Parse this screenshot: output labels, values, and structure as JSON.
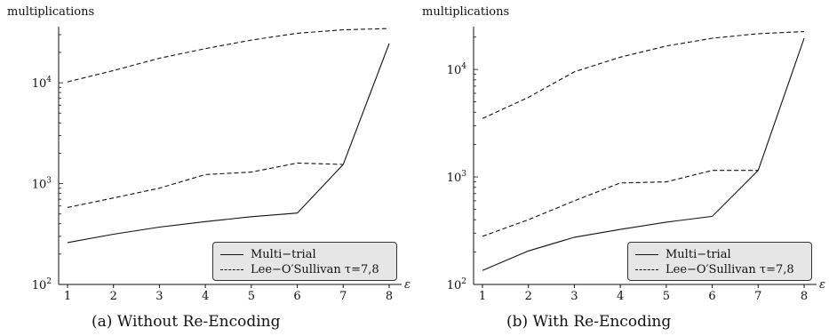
{
  "chart_data": [
    {
      "type": "line",
      "caption": "(a) Without Re-Encoding",
      "ylabel": "multiplications",
      "xlabel": "ε",
      "yscale": "log",
      "ylim": [
        100,
        36000
      ],
      "xlim": [
        0.8,
        8.2
      ],
      "x_ticks": [
        "1",
        "2",
        "3",
        "4",
        "5",
        "6",
        "7",
        "8"
      ],
      "y_ticks": [
        {
          "label": "10",
          "exp": "2",
          "value": 100
        },
        {
          "label": "10",
          "exp": "3",
          "value": 1000
        },
        {
          "label": "10",
          "exp": "4",
          "value": 10000
        }
      ],
      "legend": [
        {
          "label": "Multi−trial",
          "style": "solid"
        },
        {
          "label": "Lee−O′Sullivan τ=7,8",
          "style": "dashed"
        }
      ],
      "series": [
        {
          "name": "Multi−trial",
          "style": "solid",
          "x": [
            1,
            2,
            3,
            4,
            5,
            6,
            7,
            8
          ],
          "y": [
            260,
            315,
            370,
            420,
            470,
            510,
            1550,
            24500
          ]
        },
        {
          "name": "Lee−O′Sullivan τ=7,8",
          "style": "dashed",
          "x": [
            1,
            2,
            3,
            4,
            5,
            6,
            7
          ],
          "y": [
            580,
            720,
            900,
            1230,
            1300,
            1600,
            1550
          ]
        },
        {
          "name": "Lee−O′Sullivan τ=7,8",
          "style": "dashed",
          "x": [
            1,
            2,
            3,
            4,
            5,
            6,
            7,
            8
          ],
          "y": [
            10200,
            13200,
            17500,
            21800,
            26500,
            31000,
            33500,
            34500
          ]
        }
      ]
    },
    {
      "type": "line",
      "caption": "(b) With Re-Encoding",
      "ylabel": "multiplications",
      "xlabel": "ε",
      "yscale": "log",
      "ylim": [
        100,
        25000
      ],
      "xlim": [
        0.8,
        8.2
      ],
      "x_ticks": [
        "1",
        "2",
        "3",
        "4",
        "5",
        "6",
        "7",
        "8"
      ],
      "y_ticks": [
        {
          "label": "10",
          "exp": "2",
          "value": 100
        },
        {
          "label": "10",
          "exp": "3",
          "value": 1000
        },
        {
          "label": "10",
          "exp": "4",
          "value": 10000
        }
      ],
      "legend": [
        {
          "label": "Multi−trial",
          "style": "solid"
        },
        {
          "label": "Lee−O′Sullivan τ=7,8",
          "style": "dashed"
        }
      ],
      "series": [
        {
          "name": "Multi−trial",
          "style": "solid",
          "x": [
            1,
            2,
            3,
            4,
            5,
            6,
            7,
            8
          ],
          "y": [
            135,
            205,
            275,
            325,
            380,
            430,
            1150,
            19500
          ]
        },
        {
          "name": "Lee−O′Sullivan τ=7,8",
          "style": "dashed",
          "x": [
            1,
            2,
            3,
            4,
            5,
            6,
            7
          ],
          "y": [
            280,
            400,
            600,
            880,
            900,
            1150,
            1150
          ]
        },
        {
          "name": "Lee−O′Sullivan τ=7,8",
          "style": "dashed",
          "x": [
            1,
            2,
            3,
            4,
            5,
            6,
            7,
            8
          ],
          "y": [
            3500,
            5500,
            9500,
            13000,
            16500,
            19500,
            21500,
            22500
          ]
        }
      ]
    }
  ]
}
